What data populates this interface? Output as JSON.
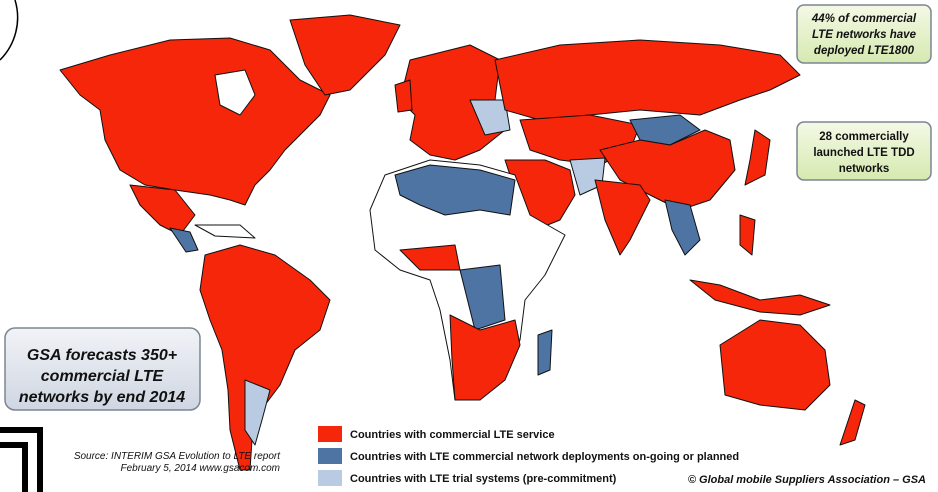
{
  "callouts": {
    "lte1800": [
      "44% of commercial",
      "LTE networks have",
      "deployed LTE1800"
    ],
    "tdd": [
      "28 commercially",
      "launched LTE TDD",
      "networks"
    ],
    "forecast": [
      "GSA forecasts 350+",
      "commercial LTE",
      "networks by end 2014"
    ]
  },
  "legend": [
    {
      "label": "Countries with commercial LTE service",
      "color": "#f5260a"
    },
    {
      "label": "Countries with LTE commercial network deployments on-going or planned",
      "color": "#4e74a4"
    },
    {
      "label": "Countries with LTE trial systems (pre-commitment)",
      "color": "#b9cbe3"
    }
  ],
  "source": [
    "Source: INTERIM GSA Evolution to LTE report",
    "February 5, 2014   www.gsacom.com"
  ],
  "copyright": "© Global mobile Suppliers Association – GSA"
}
